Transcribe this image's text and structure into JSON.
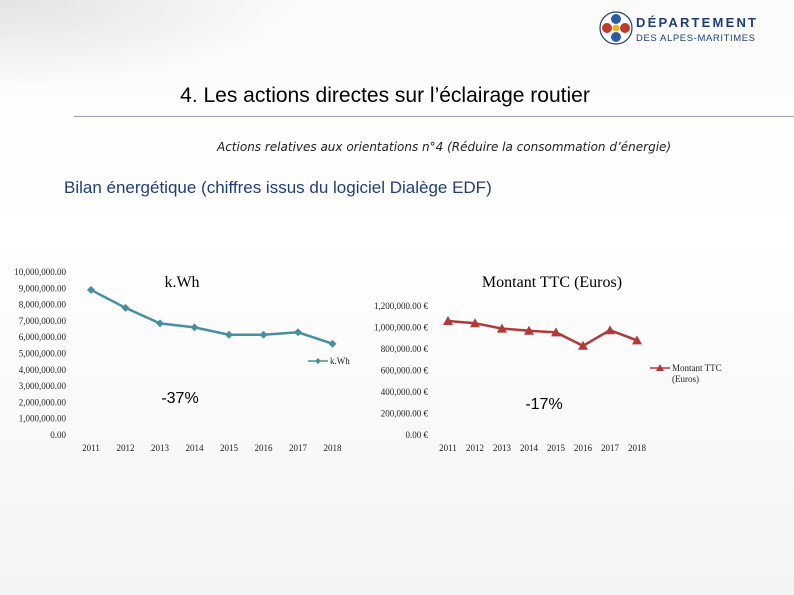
{
  "header": {
    "logo_line1": "DÉPARTEMENT",
    "logo_line2": "DES ALPES-MARITIMES",
    "title": "4. Les actions directes sur l’éclairage routier",
    "subtitle": "Actions relatives aux orientations n°4 (Réduire la consommation d’énergie)",
    "heading": "Bilan énergétique (chiffres issus du logiciel Dialège EDF)"
  },
  "colors": {
    "kwh": "#4a8fa0",
    "ttc": "#b03a3a",
    "logo": "#1f3d7a"
  },
  "chart_data": [
    {
      "type": "line",
      "title": "k.Wh",
      "categories": [
        "2011",
        "2012",
        "2013",
        "2014",
        "2015",
        "2016",
        "2017",
        "2018"
      ],
      "series": [
        {
          "name": "k.Wh",
          "values": [
            8900000,
            7800000,
            6850000,
            6600000,
            6150000,
            6150000,
            6300000,
            5600000
          ]
        }
      ],
      "ylim": [
        0,
        10000000
      ],
      "yticks": [
        "0.00",
        "1,000,000.00",
        "2,000,000.00",
        "3,000,000.00",
        "4,000,000.00",
        "5,000,000.00",
        "6,000,000.00",
        "7,000,000.00",
        "8,000,000.00",
        "9,000,000.00",
        "10,000,000.00"
      ],
      "annotation": "-37%",
      "legend": "right",
      "grid": false
    },
    {
      "type": "line",
      "title": "Montant TTC (Euros)",
      "categories": [
        "2011",
        "2012",
        "2013",
        "2014",
        "2015",
        "2016",
        "2017",
        "2018"
      ],
      "series": [
        {
          "name": "Montant TTC (Euros)",
          "values": [
            1060000,
            1040000,
            990000,
            970000,
            955000,
            830000,
            975000,
            880000
          ]
        }
      ],
      "ylim": [
        0,
        1200000
      ],
      "yticks": [
        "0.00 €",
        "200,000.00 €",
        "400,000.00 €",
        "600,000.00 €",
        "800,000.00 €",
        "1,000,000.00 €",
        "1,200,000.00 €"
      ],
      "legend_lines": [
        "Montant TTC",
        "(Euros)"
      ],
      "annotation": "-17%",
      "legend": "right",
      "grid": false
    }
  ]
}
